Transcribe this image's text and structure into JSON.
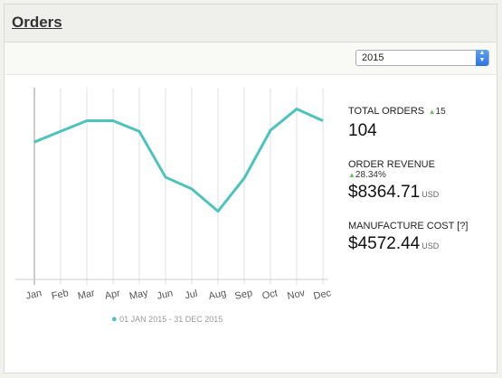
{
  "header": {
    "title": "Orders"
  },
  "year_select": {
    "value": "2015"
  },
  "chart_data": {
    "type": "line",
    "categories": [
      "Jan",
      "Feb",
      "Mar",
      "Apr",
      "May",
      "Jun",
      "Jul",
      "Aug",
      "Sep",
      "Oct",
      "Nov",
      "Dec"
    ],
    "series": [
      {
        "name": "01 JAN 2015 - 31 DEC 2015",
        "values": [
          7.9,
          8.9,
          9.9,
          9.9,
          8.9,
          4.6,
          3.5,
          1.4,
          4.5,
          9.0,
          11.0,
          9.9
        ],
        "color": "#4cc3bc"
      }
    ],
    "ylim": [
      -5,
      13
    ],
    "grid": "vertical"
  },
  "legend": {
    "text": "01 JAN 2015 - 31 DEC 2015"
  },
  "stats": {
    "total_orders": {
      "label": "TOTAL ORDERS",
      "delta": "15",
      "value": "104"
    },
    "order_revenue": {
      "label": "ORDER REVENUE",
      "delta": "28.34%",
      "value": "$8364.71",
      "currency": "USD"
    },
    "manufacture_cost": {
      "label": "MANUFACTURE COST [?]",
      "value": "$4572.44",
      "currency": "USD"
    }
  },
  "colors": {
    "accent": "#4cc3bc",
    "up": "#6cbf5c"
  }
}
